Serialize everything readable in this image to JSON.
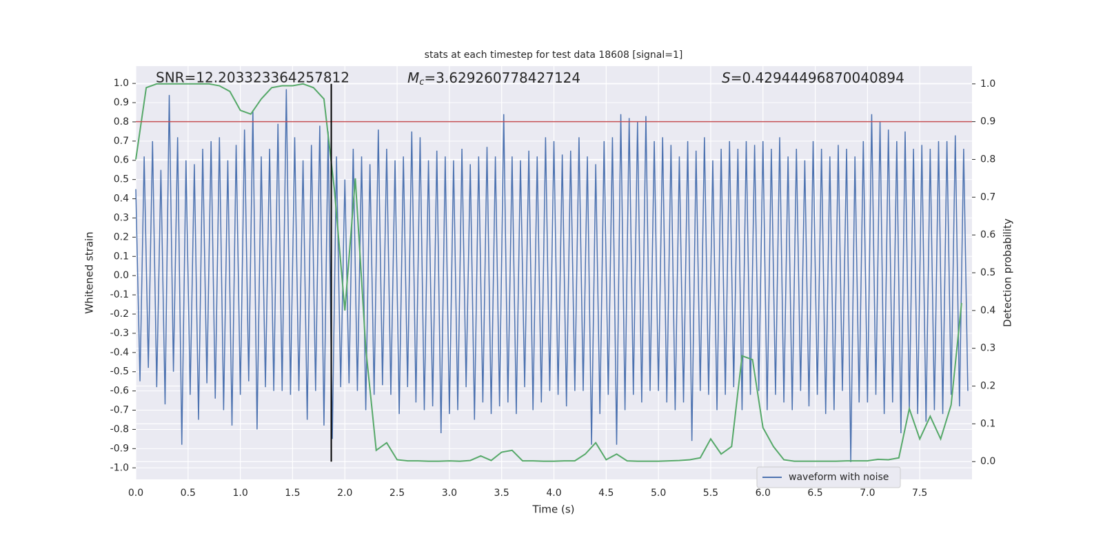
{
  "chart_data": {
    "type": "line",
    "title": "stats at each timestep for test data 18608 [signal=1]",
    "xlabel": "Time (s)",
    "ylabel": "Whitened strain",
    "y2label": "Detection probability",
    "annotations": [
      {
        "text": "SNR=12.203323364257812"
      },
      {
        "symbol": "M",
        "subscript": "c",
        "text": "=3.629260778427124"
      },
      {
        "symbol": "S",
        "text": "=0.42944496870040894"
      }
    ],
    "xlim": [
      0,
      8.0
    ],
    "ylim": [
      -1.06,
      1.09
    ],
    "y2lim": [
      -0.047,
      1.047
    ],
    "xticks": [
      {
        "value": 0,
        "label": "0.0"
      },
      0.5,
      {
        "value": 1,
        "label": "1.0"
      },
      1.5,
      {
        "value": 2,
        "label": "2.0"
      },
      2.5,
      {
        "value": 3,
        "label": "3.0"
      },
      3.5,
      {
        "value": 4,
        "label": "4.0"
      },
      4.5,
      {
        "value": 5,
        "label": "5.0"
      },
      5.5,
      {
        "value": 6,
        "label": "6.0"
      },
      6.5,
      {
        "value": 7,
        "label": "7.0"
      },
      7.5
    ],
    "yticks": [
      {
        "value": 1,
        "label": "1.0"
      },
      0.9,
      0.8,
      0.7,
      0.6,
      0.5,
      0.4,
      0.3,
      0.2,
      0.1,
      {
        "value": 0,
        "label": "0.0"
      },
      -0.1,
      -0.2,
      -0.3,
      -0.4,
      -0.5,
      -0.6,
      -0.7,
      -0.8,
      -0.9,
      {
        "value": -1,
        "label": "-1.0"
      }
    ],
    "y2ticks": [
      {
        "value": 1,
        "label": "1.0"
      },
      0.9,
      0.8,
      0.7,
      0.6,
      0.5,
      0.4,
      0.3,
      0.2,
      0.1,
      {
        "value": 0,
        "label": "0.0"
      }
    ],
    "grid": true,
    "legend": "lower right",
    "threshold": {
      "value": 0.9,
      "axis": "y2",
      "color": "#c44e52"
    },
    "marker_x": {
      "value": 1.87,
      "color": "#000000"
    },
    "series": [
      {
        "name": "waveform with noise",
        "color": "#4c72b0",
        "axis": "y",
        "x": [
          0,
          0.04,
          0.08,
          0.12,
          0.16,
          0.2,
          0.24,
          0.28,
          0.32,
          0.36,
          0.4,
          0.44,
          0.48,
          0.52,
          0.56,
          0.6,
          0.64,
          0.68,
          0.72,
          0.76,
          0.8,
          0.84,
          0.88,
          0.92,
          0.96,
          1,
          1.04,
          1.08,
          1.12,
          1.16,
          1.2,
          1.24,
          1.28,
          1.32,
          1.36,
          1.4,
          1.44,
          1.48,
          1.52,
          1.56,
          1.6,
          1.64,
          1.68,
          1.72,
          1.76,
          1.8,
          1.84,
          1.88,
          1.92,
          1.96,
          2,
          2.04,
          2.08,
          2.12,
          2.16,
          2.2,
          2.24,
          2.28,
          2.32,
          2.36,
          2.4,
          2.44,
          2.48,
          2.52,
          2.56,
          2.6,
          2.64,
          2.68,
          2.72,
          2.76,
          2.8,
          2.84,
          2.88,
          2.92,
          2.96,
          3,
          3.04,
          3.08,
          3.12,
          3.16,
          3.2,
          3.24,
          3.28,
          3.32,
          3.36,
          3.4,
          3.44,
          3.48,
          3.52,
          3.56,
          3.6,
          3.64,
          3.68,
          3.72,
          3.76,
          3.8,
          3.84,
          3.88,
          3.92,
          3.96,
          4,
          4.04,
          4.08,
          4.12,
          4.16,
          4.2,
          4.24,
          4.28,
          4.32,
          4.36,
          4.4,
          4.44,
          4.48,
          4.52,
          4.56,
          4.6,
          4.64,
          4.68,
          4.72,
          4.76,
          4.8,
          4.84,
          4.88,
          4.92,
          4.96,
          5,
          5.04,
          5.08,
          5.12,
          5.16,
          5.2,
          5.24,
          5.28,
          5.32,
          5.36,
          5.4,
          5.44,
          5.48,
          5.52,
          5.56,
          5.6,
          5.64,
          5.68,
          5.72,
          5.76,
          5.8,
          5.84,
          5.88,
          5.92,
          5.96,
          6,
          6.04,
          6.08,
          6.12,
          6.16,
          6.2,
          6.24,
          6.28,
          6.32,
          6.36,
          6.4,
          6.44,
          6.48,
          6.52,
          6.56,
          6.6,
          6.64,
          6.68,
          6.72,
          6.76,
          6.8,
          6.84,
          6.88,
          6.92,
          6.96,
          7,
          7.04,
          7.08,
          7.12,
          7.16,
          7.2,
          7.24,
          7.28,
          7.32,
          7.36,
          7.4,
          7.44,
          7.48,
          7.52,
          7.56,
          7.6,
          7.64,
          7.68,
          7.72,
          7.76,
          7.8,
          7.84,
          7.88,
          7.92,
          7.96
        ],
        "values": [
          0.45,
          -0.55,
          0.62,
          -0.48,
          0.7,
          -0.58,
          0.55,
          -0.67,
          0.94,
          -0.5,
          0.72,
          -0.88,
          0.6,
          -0.62,
          0.58,
          -0.75,
          0.66,
          -0.56,
          0.7,
          -0.64,
          0.72,
          -0.7,
          0.6,
          -0.78,
          0.68,
          -0.62,
          0.76,
          -0.55,
          0.86,
          -0.8,
          0.62,
          -0.58,
          0.66,
          -0.6,
          0.79,
          -0.6,
          0.97,
          -0.62,
          0.72,
          -0.6,
          0.6,
          -0.75,
          0.68,
          -0.6,
          0.78,
          -0.78,
          0.75,
          -0.85,
          0.62,
          -0.58,
          0.5,
          -0.56,
          0.66,
          -0.6,
          0.62,
          -0.7,
          0.58,
          -0.62,
          0.76,
          -0.57,
          0.66,
          -0.62,
          0.6,
          -0.72,
          0.62,
          -0.58,
          0.75,
          -0.66,
          0.72,
          -0.7,
          0.6,
          -0.68,
          0.65,
          -0.82,
          0.62,
          -0.72,
          0.6,
          -0.7,
          0.66,
          -0.58,
          0.58,
          -0.75,
          0.62,
          -0.66,
          0.67,
          -0.72,
          0.62,
          -0.68,
          0.84,
          -0.66,
          0.62,
          -0.72,
          0.6,
          -0.58,
          0.65,
          -0.7,
          0.62,
          -0.66,
          0.72,
          -0.6,
          0.7,
          -0.62,
          0.63,
          -0.68,
          0.65,
          -0.6,
          0.72,
          -0.6,
          0.62,
          -0.88,
          0.58,
          -0.72,
          0.7,
          -0.62,
          0.72,
          -0.88,
          0.84,
          -0.7,
          0.82,
          -0.62,
          0.8,
          -0.66,
          0.83,
          -0.6,
          0.7,
          -0.6,
          0.72,
          -0.66,
          0.68,
          -0.7,
          0.62,
          -0.66,
          0.7,
          -0.86,
          0.65,
          -0.6,
          0.72,
          -0.62,
          0.6,
          -0.7,
          0.66,
          -0.62,
          0.7,
          -0.58,
          0.66,
          -0.7,
          0.7,
          -0.62,
          0.68,
          -0.6,
          0.7,
          -0.7,
          0.66,
          -0.62,
          0.72,
          -0.66,
          0.62,
          -0.7,
          0.66,
          -0.6,
          0.6,
          -0.68,
          0.7,
          -0.62,
          0.66,
          -0.72,
          0.62,
          -0.7,
          0.68,
          -0.6,
          0.66,
          -0.97,
          0.62,
          -0.66,
          0.7,
          -0.66,
          0.84,
          -0.62,
          0.8,
          -0.72,
          0.76,
          -0.66,
          0.7,
          -0.82,
          0.75,
          -0.7,
          0.66,
          -0.72,
          0.68,
          -0.76,
          0.66,
          -0.7,
          0.7,
          -0.72,
          0.7,
          -0.62,
          0.73,
          -0.68,
          0.66,
          -0.6
        ]
      },
      {
        "color": "#55a868",
        "axis": "y2",
        "x": [
          0,
          0.1,
          0.2,
          0.3,
          0.4,
          0.5,
          0.6,
          0.7,
          0.8,
          0.9,
          1,
          1.1,
          1.2,
          1.3,
          1.4,
          1.5,
          1.6,
          1.7,
          1.8,
          1.9,
          2,
          2.1,
          2.2,
          2.3,
          2.4,
          2.5,
          2.6,
          2.7,
          2.8,
          2.9,
          3,
          3.1,
          3.2,
          3.3,
          3.4,
          3.5,
          3.6,
          3.7,
          3.8,
          3.9,
          4,
          4.1,
          4.2,
          4.3,
          4.4,
          4.5,
          4.6,
          4.7,
          4.8,
          4.9,
          5,
          5.1,
          5.2,
          5.3,
          5.4,
          5.5,
          5.6,
          5.7,
          5.8,
          5.9,
          6,
          6.1,
          6.2,
          6.3,
          6.4,
          6.5,
          6.6,
          6.7,
          6.8,
          6.9,
          7,
          7.1,
          7.2,
          7.3,
          7.4,
          7.5,
          7.6,
          7.7,
          7.8,
          7.9
        ],
        "values": [
          0.8,
          0.99,
          1.0,
          1.0,
          1.0,
          1.0,
          1.0,
          1.0,
          0.995,
          0.98,
          0.93,
          0.92,
          0.96,
          0.99,
          0.995,
          0.995,
          1.0,
          0.99,
          0.96,
          0.72,
          0.4,
          0.75,
          0.3,
          0.03,
          0.05,
          0.005,
          0.002,
          0.002,
          0.001,
          0.001,
          0.002,
          0.001,
          0.003,
          0.015,
          0.003,
          0.025,
          0.03,
          0.002,
          0.002,
          0.001,
          0.001,
          0.002,
          0.002,
          0.02,
          0.05,
          0.005,
          0.02,
          0.002,
          0.001,
          0.001,
          0.001,
          0.002,
          0.003,
          0.005,
          0.01,
          0.06,
          0.02,
          0.04,
          0.28,
          0.27,
          0.09,
          0.04,
          0.005,
          0.001,
          0.001,
          0.001,
          0.001,
          0.001,
          0.002,
          0.002,
          0.002,
          0.006,
          0.005,
          0.01,
          0.14,
          0.06,
          0.12,
          0.06,
          0.15,
          0.42
        ]
      }
    ]
  }
}
